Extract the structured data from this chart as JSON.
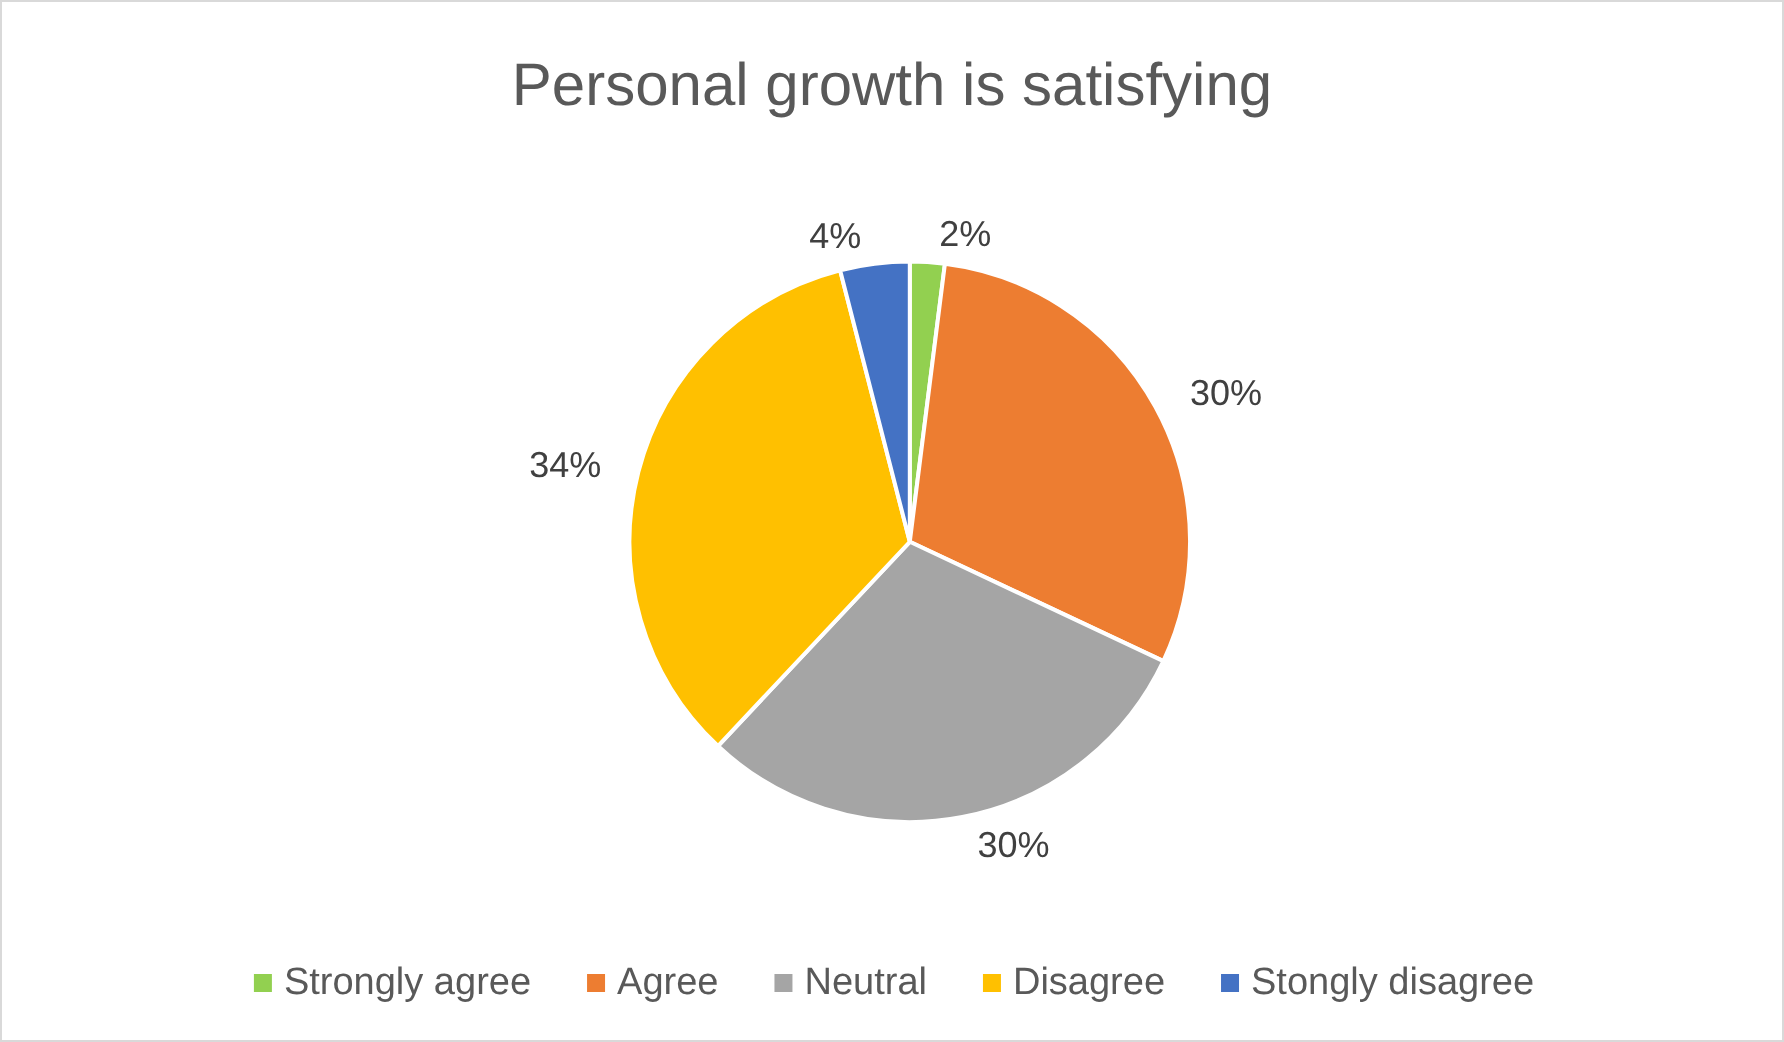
{
  "chart_data": {
    "type": "pie",
    "title": "Personal growth is satisfying",
    "categories": [
      "Strongly agree",
      "Agree",
      "Neutral",
      "Disagree",
      "Stongly disagree"
    ],
    "values": [
      2,
      30,
      30,
      34,
      4
    ],
    "colors": [
      "#92d050",
      "#ed7d31",
      "#a5a5a5",
      "#ffc000",
      "#4472c4"
    ],
    "value_labels": [
      "2%",
      "30%",
      "30%",
      "34%",
      "4%"
    ],
    "legend": "bottom"
  }
}
